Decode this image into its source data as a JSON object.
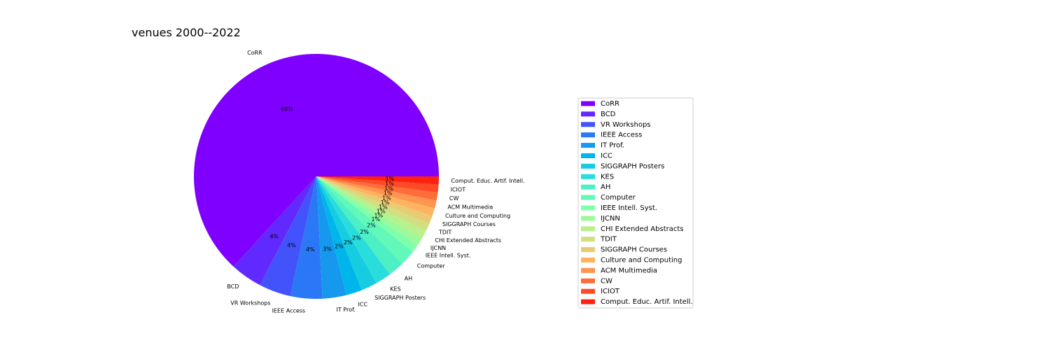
{
  "chart_data": {
    "type": "pie",
    "title": "venues 2000--2022",
    "legend_position": "right",
    "start_angle_deg": 0,
    "direction": "counterclockwise",
    "slices": [
      {
        "label": "CoRR",
        "value": 60,
        "pct_label": "60%",
        "color": "#8000ff"
      },
      {
        "label": "BCD",
        "value": 4,
        "pct_label": "4%",
        "color": "#6129fe"
      },
      {
        "label": "VR Workshops",
        "value": 4,
        "pct_label": "4%",
        "color": "#4353fb"
      },
      {
        "label": "IEEE Access",
        "value": 4,
        "pct_label": "4%",
        "color": "#2a78f5"
      },
      {
        "label": "IT Prof.",
        "value": 3,
        "pct_label": "3%",
        "color": "#1598ed"
      },
      {
        "label": "ICC",
        "value": 2,
        "pct_label": "2%",
        "color": "#00b5eb"
      },
      {
        "label": "SIGGRAPH Posters",
        "value": 2,
        "pct_label": "2%",
        "color": "#15cce0"
      },
      {
        "label": "KES",
        "value": 2,
        "pct_label": "2%",
        "color": "#2adddd"
      },
      {
        "label": "AH",
        "value": 2,
        "pct_label": "2%",
        "color": "#4cf0c4"
      },
      {
        "label": "Computer",
        "value": 2,
        "pct_label": "2%",
        "color": "#61f8b9"
      },
      {
        "label": "IEEE Intell. Syst.",
        "value": 1,
        "pct_label": "1%",
        "color": "#80ffaa"
      },
      {
        "label": "IJCNN",
        "value": 1,
        "pct_label": "1%",
        "color": "#9ef99b"
      },
      {
        "label": "CHI Extended Abstracts",
        "value": 1,
        "pct_label": "1%",
        "color": "#b9f08b"
      },
      {
        "label": "TDIT",
        "value": 1,
        "pct_label": "1%",
        "color": "#d2de81"
      },
      {
        "label": "SIGGRAPH Courses",
        "value": 1,
        "pct_label": "1%",
        "color": "#e8cb72"
      },
      {
        "label": "Culture and Computing",
        "value": 1,
        "pct_label": "1%",
        "color": "#ffb360"
      },
      {
        "label": "ACM Multimedia",
        "value": 1,
        "pct_label": "1%",
        "color": "#ff954e"
      },
      {
        "label": "CW",
        "value": 1,
        "pct_label": "1%",
        "color": "#ff6e3a"
      },
      {
        "label": "ICIOT",
        "value": 1,
        "pct_label": "1%",
        "color": "#ff4a27"
      },
      {
        "label": "Comput. Educ. Artif. Intell.",
        "value": 1,
        "pct_label": "1%",
        "color": "#ff2010"
      }
    ]
  }
}
